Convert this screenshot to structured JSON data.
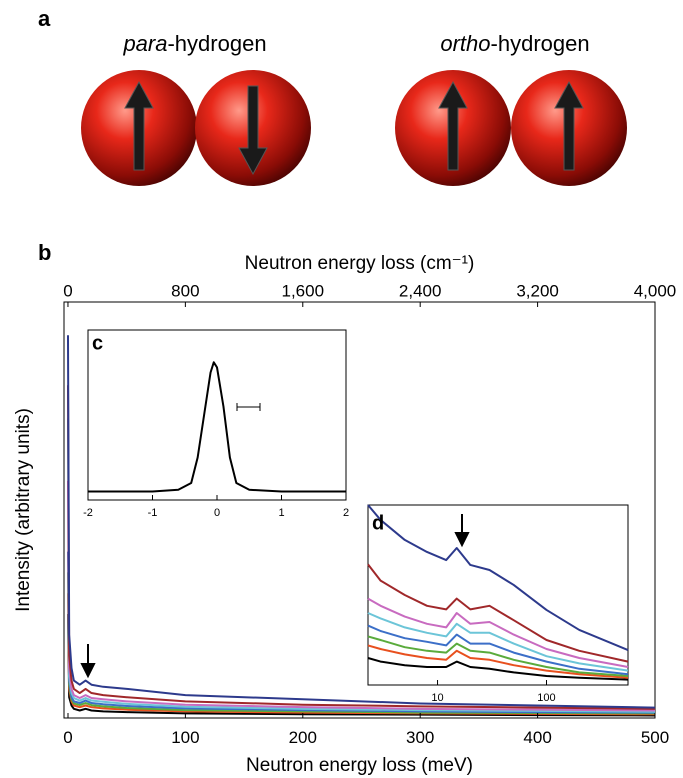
{
  "panel_a": {
    "label": "a",
    "molecules": [
      {
        "prefix": "para",
        "suffix": "-hydrogen"
      },
      {
        "prefix": "ortho",
        "suffix": "-hydrogen"
      }
    ]
  },
  "chart_data": [
    {
      "type": "line",
      "label": "b",
      "xlabel": "Neutron energy loss (meV)",
      "ylabel": "Intensity (arbitrary units)",
      "x2label": "Neutron energy loss (cm⁻¹)",
      "xlim": [
        -3.4,
        500
      ],
      "xticks": [
        0,
        100,
        200,
        300,
        400,
        500
      ],
      "x2lim": [
        -27,
        4000
      ],
      "x2ticks": [
        0,
        800,
        {
          "value": 1600,
          "label": "1,600"
        },
        {
          "value": 2400,
          "label": "2,400"
        },
        {
          "value": 3200,
          "label": "3,200"
        },
        {
          "value": 4000,
          "label": "4,000"
        }
      ],
      "ylim": [
        0,
        100
      ],
      "x": [
        0,
        1,
        3,
        5,
        10,
        15,
        20,
        30,
        50,
        100,
        200,
        300,
        400,
        500
      ],
      "series": [
        {
          "color": "#000000",
          "values": [
            25,
            5,
            3,
            2.2,
            1.8,
            2.2,
            1.8,
            1.6,
            1.4,
            1.1,
            0.9,
            0.8,
            0.7,
            0.6
          ]
        },
        {
          "color": "#e8501e",
          "values": [
            30,
            7,
            4,
            3,
            2.6,
            3,
            2.6,
            2.3,
            2,
            1.6,
            1.3,
            1.1,
            1,
            0.9
          ]
        },
        {
          "color": "#5aab3c",
          "values": [
            35,
            8,
            4.5,
            3.5,
            3.1,
            3.6,
            3.1,
            2.8,
            2.4,
            1.9,
            1.6,
            1.3,
            1.2,
            1.1
          ]
        },
        {
          "color": "#3c6fc8",
          "values": [
            40,
            9,
            5,
            4,
            3.6,
            4.2,
            3.6,
            3.3,
            2.9,
            2.3,
            1.9,
            1.6,
            1.4,
            1.3
          ]
        },
        {
          "color": "#6cc5d8",
          "values": [
            72,
            10,
            6,
            4.8,
            4.2,
            4.8,
            4.2,
            3.9,
            3.4,
            2.7,
            2.2,
            1.9,
            1.7,
            1.5
          ]
        },
        {
          "color": "#c86bc0",
          "values": [
            57,
            12,
            7,
            5.5,
            4.8,
            5.5,
            4.8,
            4.5,
            4,
            3.2,
            2.6,
            2.2,
            2,
            1.8
          ]
        },
        {
          "color": "#a0282a",
          "values": [
            80,
            15,
            9,
            7,
            6,
            7,
            6,
            5.5,
            5,
            4,
            3.2,
            2.8,
            2.5,
            2.2
          ]
        },
        {
          "color": "#2d3a8c",
          "values": [
            92,
            20,
            12,
            9,
            8,
            9,
            8,
            7.5,
            7,
            5.5,
            4.5,
            3.5,
            3,
            2.5
          ]
        }
      ]
    },
    {
      "type": "line",
      "label": "c",
      "xlim": [
        -2,
        2
      ],
      "xticks": [
        -2,
        -1,
        0,
        1,
        2
      ],
      "ylim": [
        0,
        100
      ],
      "x": [
        -2,
        -1.5,
        -1,
        -0.6,
        -0.4,
        -0.3,
        -0.2,
        -0.1,
        -0.05,
        0,
        0.1,
        0.2,
        0.3,
        0.5,
        1,
        1.5,
        2
      ],
      "series": [
        {
          "color": "#000000",
          "values": [
            5,
            5,
            5,
            6,
            10,
            25,
            50,
            75,
            81,
            78,
            55,
            25,
            10,
            6,
            5,
            5,
            5
          ]
        }
      ]
    },
    {
      "type": "line",
      "label": "d",
      "xscale": "log",
      "xlim": [
        2.3,
        560
      ],
      "xticks": [
        10,
        100
      ],
      "ylim": [
        0,
        100
      ],
      "x": [
        2.3,
        3,
        5,
        8,
        12,
        15,
        20,
        30,
        50,
        100,
        200,
        560
      ],
      "series": [
        {
          "color": "#000000",
          "values": [
            15,
            13,
            11,
            10,
            10,
            13,
            10,
            9,
            7,
            5,
            4,
            3
          ]
        },
        {
          "color": "#e8501e",
          "values": [
            22,
            20,
            17,
            15,
            14,
            19,
            15,
            14,
            11,
            8,
            6,
            4
          ]
        },
        {
          "color": "#5aab3c",
          "values": [
            27,
            25,
            21,
            19,
            18,
            23,
            19,
            18,
            14,
            10,
            7,
            5
          ]
        },
        {
          "color": "#3c6fc8",
          "values": [
            33,
            30,
            26,
            24,
            22,
            28,
            23,
            23,
            18,
            13,
            9,
            6
          ]
        },
        {
          "color": "#6cc5d8",
          "values": [
            40,
            37,
            32,
            29,
            27,
            34,
            29,
            29,
            23,
            16,
            12,
            8
          ]
        },
        {
          "color": "#c86bc0",
          "values": [
            48,
            44,
            38,
            34,
            32,
            40,
            34,
            35,
            28,
            20,
            15,
            10
          ]
        },
        {
          "color": "#a0282a",
          "values": [
            67,
            58,
            50,
            44,
            42,
            48,
            42,
            44,
            36,
            25,
            19,
            13
          ]
        },
        {
          "color": "#2d3a8c",
          "values": [
            100,
            91.7,
            80.6,
            73.9,
            69.4,
            76.1,
            66.7,
            63.9,
            55.6,
            41.7,
            30.6,
            19.4
          ]
        }
      ]
    }
  ]
}
